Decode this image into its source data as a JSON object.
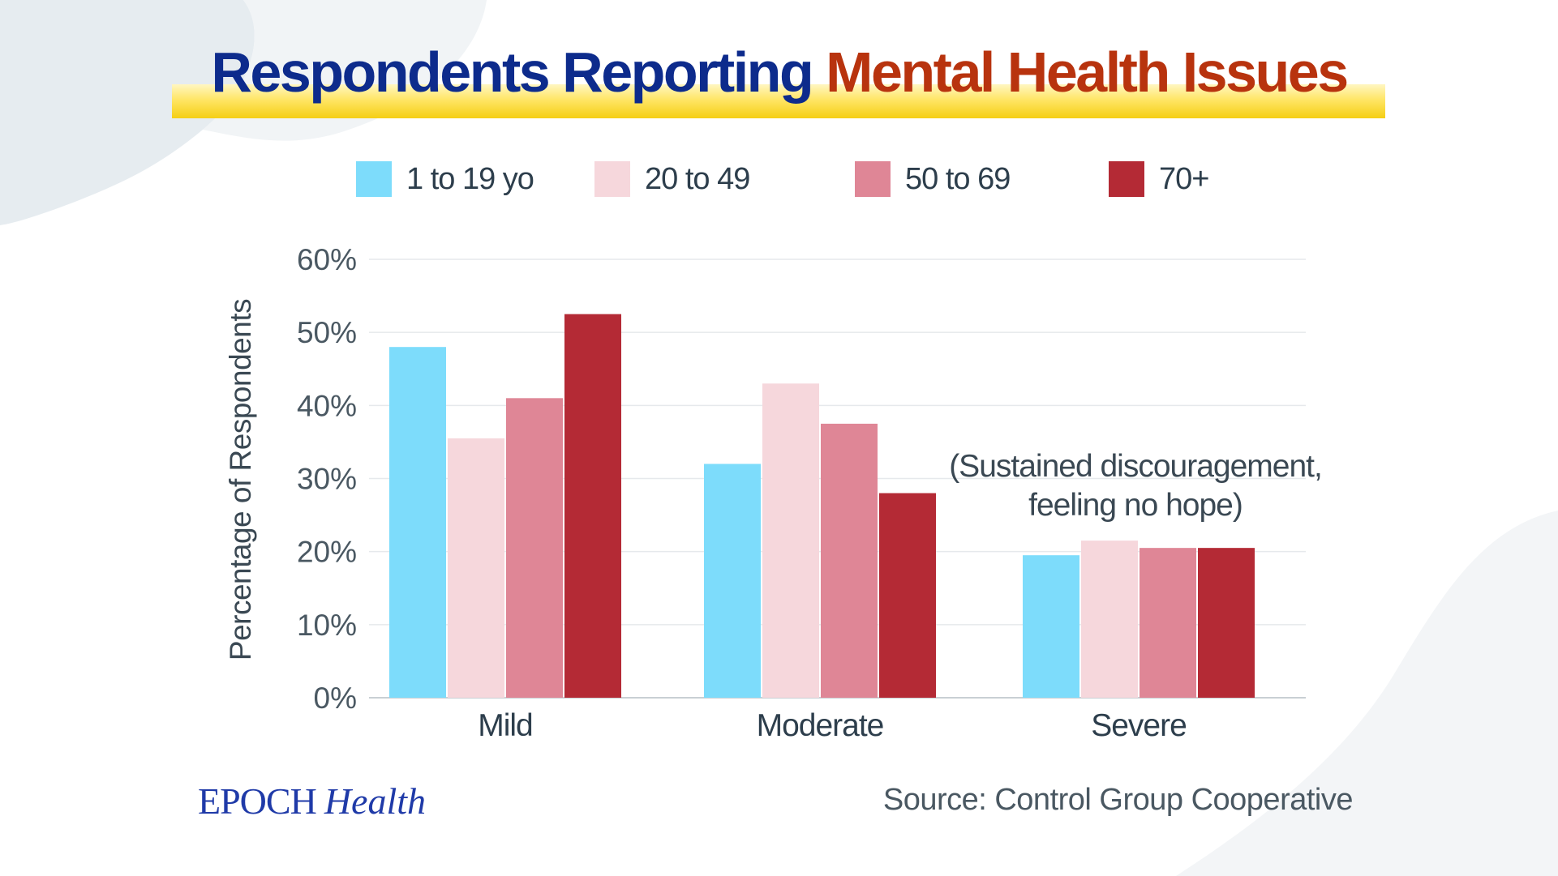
{
  "title": {
    "part1": "Respondents Reporting",
    "part2": "Mental Health Issues"
  },
  "colors": {
    "title_blue": "#0d2b8c",
    "title_red": "#b8330e",
    "highlight_yellow": "#f5cf14"
  },
  "legend": [
    {
      "label": "1 to 19 yo",
      "color": "#7ddcfb"
    },
    {
      "label": "20 to 49",
      "color": "#f6d7dc"
    },
    {
      "label": "50 to 69",
      "color": "#df8696"
    },
    {
      "label": "70+",
      "color": "#b42a35"
    }
  ],
  "chart_data": {
    "type": "bar",
    "title": "Respondents Reporting Mental Health Issues",
    "xlabel": "",
    "ylabel": "Percentage of Respondents",
    "categories": [
      "Mild",
      "Moderate",
      "Severe"
    ],
    "series": [
      {
        "name": "1 to 19 yo",
        "color": "#7ddcfb",
        "values": [
          48,
          32,
          19.5
        ]
      },
      {
        "name": "20 to 49",
        "color": "#f6d7dc",
        "values": [
          35.5,
          43,
          21.5
        ]
      },
      {
        "name": "50 to 69",
        "color": "#df8696",
        "values": [
          41,
          37.5,
          20.5
        ]
      },
      {
        "name": "70+",
        "color": "#b42a35",
        "values": [
          52.5,
          28,
          20.5
        ]
      }
    ],
    "ylim": [
      0,
      60
    ],
    "yticks": [
      0,
      10,
      20,
      30,
      40,
      50,
      60
    ],
    "ytick_labels": [
      "0%",
      "10%",
      "20%",
      "30%",
      "40%",
      "50%",
      "60%"
    ],
    "grid": true,
    "legend_position": "top",
    "annotations": [
      {
        "category": "Severe",
        "lines": [
          "(Sustained discouragement,",
          "feeling no hope)"
        ]
      }
    ]
  },
  "footer": {
    "brand_main": "EPOCH",
    "brand_sub": "Health",
    "source": "Source: Control Group Cooperative"
  }
}
